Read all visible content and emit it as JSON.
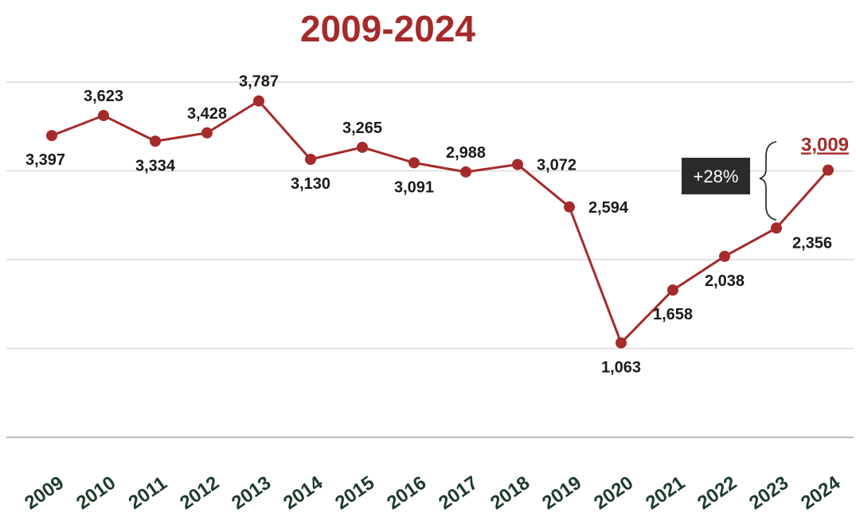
{
  "chart_data": {
    "type": "line",
    "title": "2009-2024",
    "categories": [
      "2009",
      "2010",
      "2011",
      "2012",
      "2013",
      "2014",
      "2015",
      "2016",
      "2017",
      "2018",
      "2019",
      "2020",
      "2021",
      "2022",
      "2023",
      "2024"
    ],
    "series": [
      {
        "values": [
          3397,
          3623,
          3334,
          3428,
          3787,
          3130,
          3265,
          3091,
          2988,
          3072,
          2594,
          1063,
          1658,
          2038,
          2356,
          3009
        ]
      }
    ],
    "data_labels": [
      "3,397",
      "3,623",
      "3,334",
      "3,428",
      "3,787",
      "3,130",
      "3,265",
      "3,091",
      "2,988",
      "3,072",
      "2,594",
      "1,063",
      "1,658",
      "2,038",
      "2,356",
      "3,009"
    ],
    "ylim": [
      0,
      4000
    ],
    "grid": true,
    "annotation": {
      "text": "+28%",
      "from": "2023",
      "to": "2024"
    },
    "colors": {
      "line": "#a52a2a",
      "title": "#a52a2a",
      "ticks": "#1d3b2b",
      "grid": "#d9d9d9",
      "annotation_bg": "#2b2b2b"
    }
  }
}
